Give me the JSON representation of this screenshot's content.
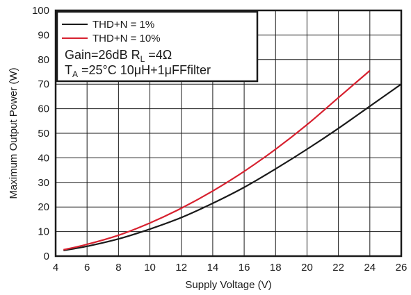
{
  "chart_data": {
    "type": "line",
    "xlabel": "Supply Voltage (V)",
    "ylabel": "Maximum Output Power (W)",
    "xlim": [
      4,
      26
    ],
    "ylim": [
      0,
      100
    ],
    "xticks": [
      4,
      6,
      8,
      10,
      12,
      14,
      16,
      18,
      20,
      22,
      24,
      26
    ],
    "yticks": [
      0,
      10,
      20,
      30,
      40,
      50,
      60,
      70,
      80,
      90,
      100
    ],
    "grid": true,
    "legend_position": "top-left",
    "series": [
      {
        "name": "THD+N = 1%",
        "color": "#1a1a1a",
        "x": [
          4.5,
          6,
          8,
          10,
          12,
          14,
          16,
          18,
          20,
          22,
          24,
          26
        ],
        "y": [
          2.3,
          4.0,
          7.0,
          11.0,
          15.7,
          21.5,
          28.0,
          35.5,
          43.5,
          52.0,
          61.0,
          70.0
        ]
      },
      {
        "name": "THD+N = 10%",
        "color": "#d7212f",
        "x": [
          4.5,
          6,
          8,
          10,
          12,
          14,
          16,
          18,
          20,
          22,
          24
        ],
        "y": [
          2.6,
          4.8,
          8.5,
          13.5,
          19.5,
          26.5,
          34.5,
          43.5,
          53.5,
          64.5,
          75.5
        ]
      }
    ],
    "annotations": {
      "line1": {
        "main": "Gain=26dB  R",
        "sub": "L",
        "tail": " =4Ω"
      },
      "line2": {
        "main": "T",
        "sub": "A",
        "tail": " =25°C  10μH+1μFFfilter"
      }
    }
  }
}
